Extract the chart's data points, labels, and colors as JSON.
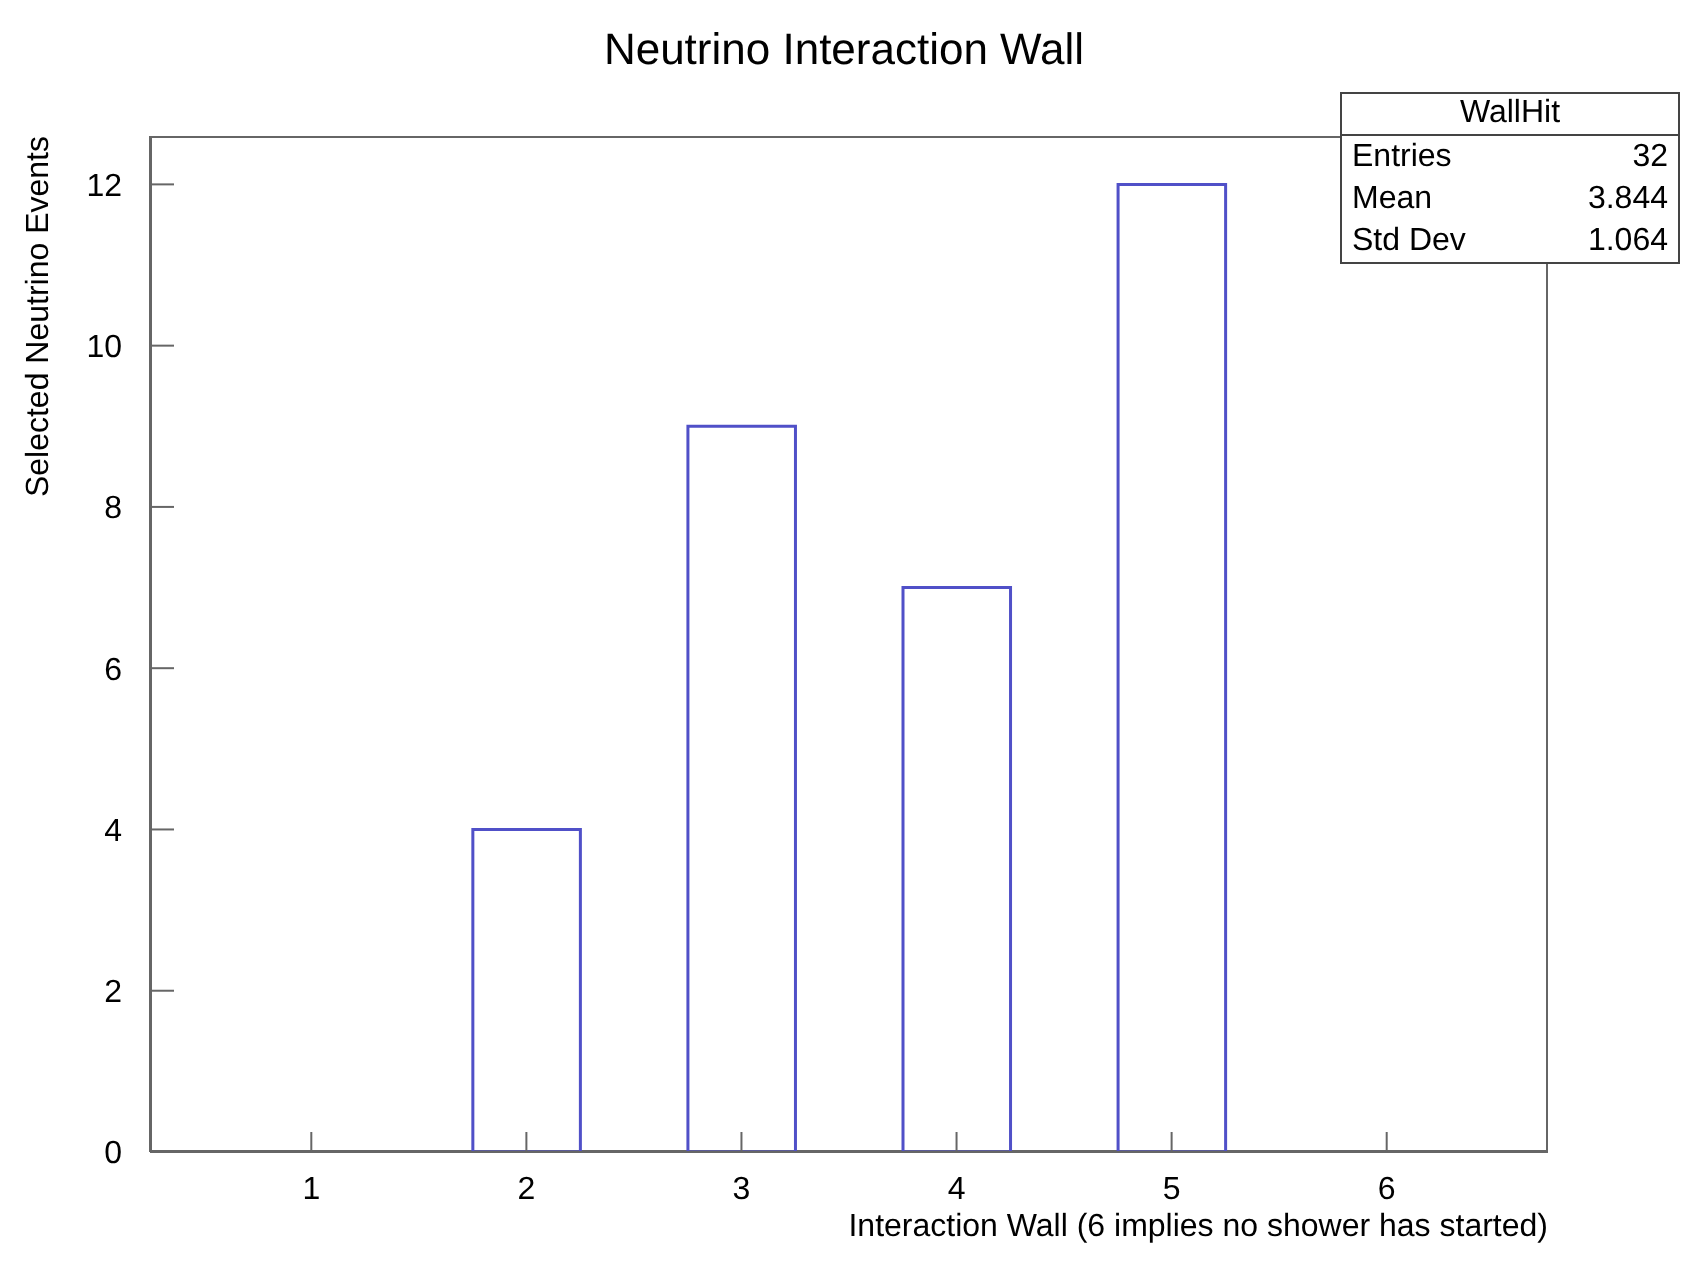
{
  "chart_data": {
    "type": "bar",
    "title": "Neutrino Interaction Wall",
    "xlabel": "Interaction Wall (6 implies no shower has started)",
    "ylabel": "Selected Neutrino Events",
    "x": [
      2,
      3,
      4,
      5
    ],
    "values": [
      4,
      9,
      7,
      12
    ],
    "color": "#5050c8",
    "xlim": [
      0.25,
      6.75
    ],
    "xticks": [
      1,
      2,
      3,
      4,
      5,
      6
    ],
    "ylim": [
      0,
      12.6
    ],
    "yticks": [
      0,
      2,
      4,
      6,
      8,
      10,
      12
    ],
    "grid": false,
    "annotations": [
      "WallHit",
      "Entries",
      "32",
      "Mean",
      "3.844",
      "Std Dev",
      "1.064"
    ]
  }
}
